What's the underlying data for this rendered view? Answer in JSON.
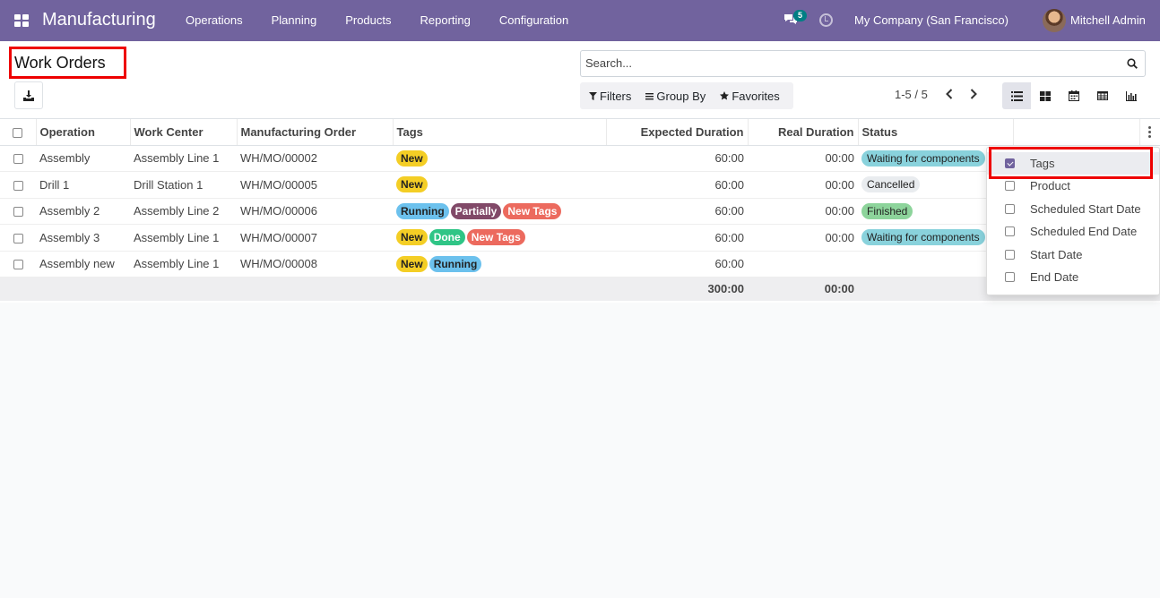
{
  "navbar": {
    "app_title": "Manufacturing",
    "menu": [
      "Operations",
      "Planning",
      "Products",
      "Reporting",
      "Configuration"
    ],
    "chat_count": "5",
    "company": "My Company (San Francisco)",
    "user": "Mitchell Admin"
  },
  "control": {
    "title": "Work Orders",
    "search_placeholder": "Search...",
    "filters_label": "Filters",
    "groupby_label": "Group By",
    "favorites_label": "Favorites",
    "pager": "1-5 / 5"
  },
  "table": {
    "headers": [
      "Operation",
      "Work Center",
      "Manufacturing Order",
      "Tags",
      "Expected Duration",
      "Real Duration",
      "Status"
    ],
    "rows": [
      {
        "operation": "Assembly",
        "work_center": "Assembly Line 1",
        "mo": "WH/MO/00002",
        "tags": [
          {
            "label": "New",
            "color": "#f4ce25",
            "text": "#222"
          }
        ],
        "expected": "60:00",
        "real": "00:00",
        "status": {
          "label": "Waiting for components",
          "color": "#89d2dc"
        }
      },
      {
        "operation": "Drill 1",
        "work_center": "Drill Station 1",
        "mo": "WH/MO/00005",
        "tags": [
          {
            "label": "New",
            "color": "#f4ce25",
            "text": "#222"
          }
        ],
        "expected": "60:00",
        "real": "00:00",
        "status": {
          "label": "Cancelled",
          "color": "#e9ecef"
        }
      },
      {
        "operation": "Assembly 2",
        "work_center": "Assembly Line 2",
        "mo": "WH/MO/00006",
        "tags": [
          {
            "label": "Running",
            "color": "#6cc1ed",
            "text": "#222"
          },
          {
            "label": "Partially",
            "color": "#814968",
            "text": "#fff"
          },
          {
            "label": "New Tags",
            "color": "#ec6a5e",
            "text": "#fff"
          }
        ],
        "expected": "60:00",
        "real": "00:00",
        "status": {
          "label": "Finished",
          "color": "#8dd49b"
        }
      },
      {
        "operation": "Assembly 3",
        "work_center": "Assembly Line 1",
        "mo": "WH/MO/00007",
        "tags": [
          {
            "label": "New",
            "color": "#f4ce25",
            "text": "#222"
          },
          {
            "label": "Done",
            "color": "#2fc586",
            "text": "#fff"
          },
          {
            "label": "New Tags",
            "color": "#ec6a5e",
            "text": "#fff"
          }
        ],
        "expected": "60:00",
        "real": "00:00",
        "status": {
          "label": "Waiting for components",
          "color": "#89d2dc"
        }
      },
      {
        "operation": "Assembly new",
        "work_center": "Assembly Line 1",
        "mo": "WH/MO/00008",
        "tags": [
          {
            "label": "New",
            "color": "#f4ce25",
            "text": "#222"
          },
          {
            "label": "Running",
            "color": "#6cc1ed",
            "text": "#222"
          }
        ],
        "expected": "60:00",
        "real": "",
        "status": null
      }
    ],
    "totals": {
      "expected": "300:00",
      "real": "00:00"
    }
  },
  "optional_columns": [
    {
      "label": "Tags",
      "checked": true
    },
    {
      "label": "Product",
      "checked": false
    },
    {
      "label": "Scheduled Start Date",
      "checked": false
    },
    {
      "label": "Scheduled End Date",
      "checked": false
    },
    {
      "label": "Start Date",
      "checked": false
    },
    {
      "label": "End Date",
      "checked": false
    }
  ]
}
